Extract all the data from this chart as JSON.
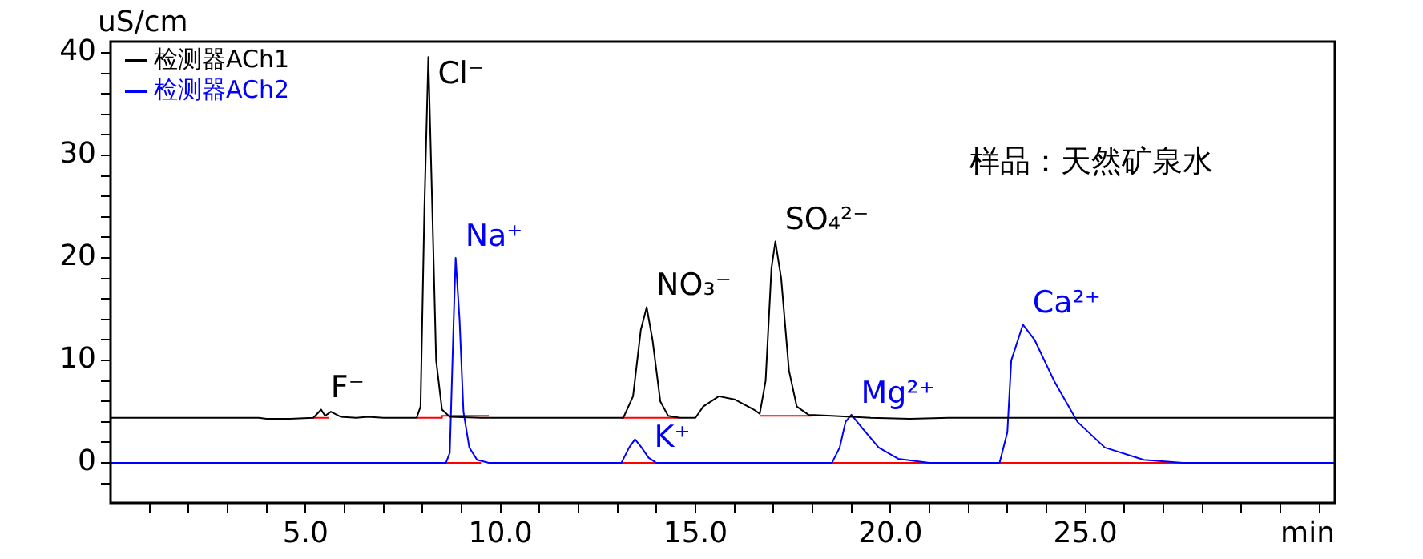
{
  "chart_data": {
    "type": "line",
    "ylabel": "uS/cm",
    "xlabel": "min",
    "xlim": [
      0,
      31.4
    ],
    "ylim": [
      -3.9,
      41.1
    ],
    "xticks": [
      {
        "value": 1,
        "label": null
      },
      {
        "value": 2,
        "label": null
      },
      {
        "value": 3,
        "label": null
      },
      {
        "value": 4,
        "label": null
      },
      {
        "value": 5,
        "label": "5.0"
      },
      {
        "value": 6,
        "label": null
      },
      {
        "value": 7,
        "label": null
      },
      {
        "value": 8,
        "label": null
      },
      {
        "value": 9,
        "label": null
      },
      {
        "value": 10,
        "label": "10.0"
      },
      {
        "value": 11,
        "label": null
      },
      {
        "value": 12,
        "label": null
      },
      {
        "value": 13,
        "label": null
      },
      {
        "value": 14,
        "label": null
      },
      {
        "value": 15,
        "label": "15.0"
      },
      {
        "value": 16,
        "label": null
      },
      {
        "value": 17,
        "label": null
      },
      {
        "value": 18,
        "label": null
      },
      {
        "value": 19,
        "label": null
      },
      {
        "value": 20,
        "label": "20.0"
      },
      {
        "value": 21,
        "label": null
      },
      {
        "value": 22,
        "label": null
      },
      {
        "value": 23,
        "label": null
      },
      {
        "value": 24,
        "label": null
      },
      {
        "value": 25,
        "label": "25.0"
      },
      {
        "value": 26,
        "label": null
      },
      {
        "value": 27,
        "label": null
      },
      {
        "value": 28,
        "label": null
      },
      {
        "value": 29,
        "label": null
      },
      {
        "value": 30,
        "label": null
      },
      {
        "value": 31,
        "label": null
      }
    ],
    "yticks": [
      {
        "value": -2,
        "label": null
      },
      0,
      {
        "value": 2,
        "label": null
      },
      {
        "value": 4,
        "label": null
      },
      {
        "value": 6,
        "label": null
      },
      {
        "value": 8,
        "label": null
      },
      10,
      {
        "value": 12,
        "label": null
      },
      {
        "value": 14,
        "label": null
      },
      {
        "value": 16,
        "label": null
      },
      {
        "value": 18,
        "label": null
      },
      20,
      {
        "value": 22,
        "label": null
      },
      {
        "value": 24,
        "label": null
      },
      {
        "value": 26,
        "label": null
      },
      {
        "value": 28,
        "label": null
      },
      30,
      {
        "value": 32,
        "label": null
      },
      {
        "value": 34,
        "label": null
      },
      {
        "value": 36,
        "label": null
      },
      {
        "value": 38,
        "label": null
      },
      40
    ],
    "grid": false,
    "legend": "top left",
    "marker": "none",
    "series": [
      {
        "name": "检测器ACh1",
        "color": "#000000",
        "x": [
          0,
          3.8,
          4.0,
          4.6,
          5.2,
          5.4,
          5.5,
          5.65,
          5.9,
          6.3,
          6.6,
          7.0,
          7.85,
          7.95,
          8.05,
          8.15,
          8.25,
          8.35,
          8.5,
          8.7,
          9.5,
          13.15,
          13.4,
          13.6,
          13.75,
          13.9,
          14.1,
          14.3,
          14.6,
          15.0,
          15.2,
          15.6,
          16.0,
          16.5,
          16.65,
          16.8,
          16.95,
          17.05,
          17.2,
          17.4,
          17.6,
          17.9,
          18.5,
          19.0,
          19.5,
          20.5,
          21.5,
          31.4
        ],
        "values": [
          4.4,
          4.4,
          4.3,
          4.3,
          4.4,
          5.2,
          4.6,
          5.0,
          4.5,
          4.4,
          4.5,
          4.4,
          4.4,
          5.5,
          25,
          39.6,
          25,
          10,
          5.2,
          4.5,
          4.4,
          4.4,
          6.5,
          13,
          15.2,
          12,
          6,
          4.6,
          4.4,
          4.4,
          5.5,
          6.5,
          6.2,
          5.2,
          4.8,
          8,
          19,
          21.6,
          18,
          9,
          5.5,
          4.7,
          4.6,
          4.5,
          4.4,
          4.3,
          4.4,
          4.4
        ]
      },
      {
        "name": "检测器ACh2",
        "color": "#0000ff",
        "x": [
          0,
          8.6,
          8.7,
          8.8,
          8.85,
          8.95,
          9.05,
          9.2,
          9.4,
          9.7,
          13.1,
          13.3,
          13.45,
          13.6,
          13.8,
          14.0,
          18.5,
          18.7,
          18.85,
          19.0,
          19.3,
          19.7,
          20.2,
          21.0,
          22.8,
          23.0,
          23.1,
          23.4,
          23.7,
          24.2,
          24.8,
          25.5,
          26.5,
          27.5,
          31.4
        ],
        "values": [
          0,
          0,
          1,
          14,
          20,
          14,
          5,
          1.5,
          0.3,
          0,
          0,
          1.5,
          2.3,
          1.6,
          0.5,
          0,
          0,
          1.5,
          4,
          4.7,
          3.3,
          1.5,
          0.4,
          0,
          0,
          3,
          10,
          13.5,
          12,
          8,
          4,
          1.5,
          0.3,
          0,
          0
        ]
      },
      {
        "color": "#ff0000",
        "x": [
          5.2,
          5.6
        ],
        "values": [
          4.4,
          4.4
        ]
      },
      {
        "color": "#ff0000",
        "x": [
          7.85,
          8.5,
          8.5,
          9.7
        ],
        "values": [
          4.4,
          4.4,
          4.6,
          4.6
        ]
      },
      {
        "color": "#ff0000",
        "x": [
          13.1,
          14.6
        ],
        "values": [
          4.4,
          4.4
        ]
      },
      {
        "color": "#ff0000",
        "x": [
          16.65,
          18.0
        ],
        "values": [
          4.6,
          4.6
        ]
      },
      {
        "color": "#ff0000",
        "x": [
          8.5,
          9.5
        ],
        "values": [
          0,
          0
        ]
      },
      {
        "color": "#ff0000",
        "x": [
          13.0,
          14.6
        ],
        "values": [
          0,
          0
        ]
      },
      {
        "color": "#ff0000",
        "x": [
          18.5,
          21.7
        ],
        "values": [
          0,
          0
        ]
      },
      {
        "color": "#ff0000",
        "x": [
          22.8,
          28.7
        ],
        "values": [
          0,
          0
        ]
      }
    ],
    "annotations": [
      {
        "text": "F⁻",
        "x": 5.4,
        "y": 5.2
      },
      {
        "text": "Cl⁻",
        "x": 8.15,
        "y": 39.6
      },
      {
        "text": "Na⁺",
        "x": 8.85,
        "y": 20
      },
      {
        "text": "NO₃⁻",
        "x": 13.75,
        "y": 15.2
      },
      {
        "text": "K⁺",
        "x": 13.45,
        "y": 2.3
      },
      {
        "text": "SO₄²⁻",
        "x": 17.05,
        "y": 21.6
      },
      {
        "text": "Mg²⁺",
        "x": 19.0,
        "y": 4.7
      },
      {
        "text": "Ca²⁺",
        "x": 23.4,
        "y": 13.5
      },
      "样品：天然矿泉水"
    ]
  }
}
